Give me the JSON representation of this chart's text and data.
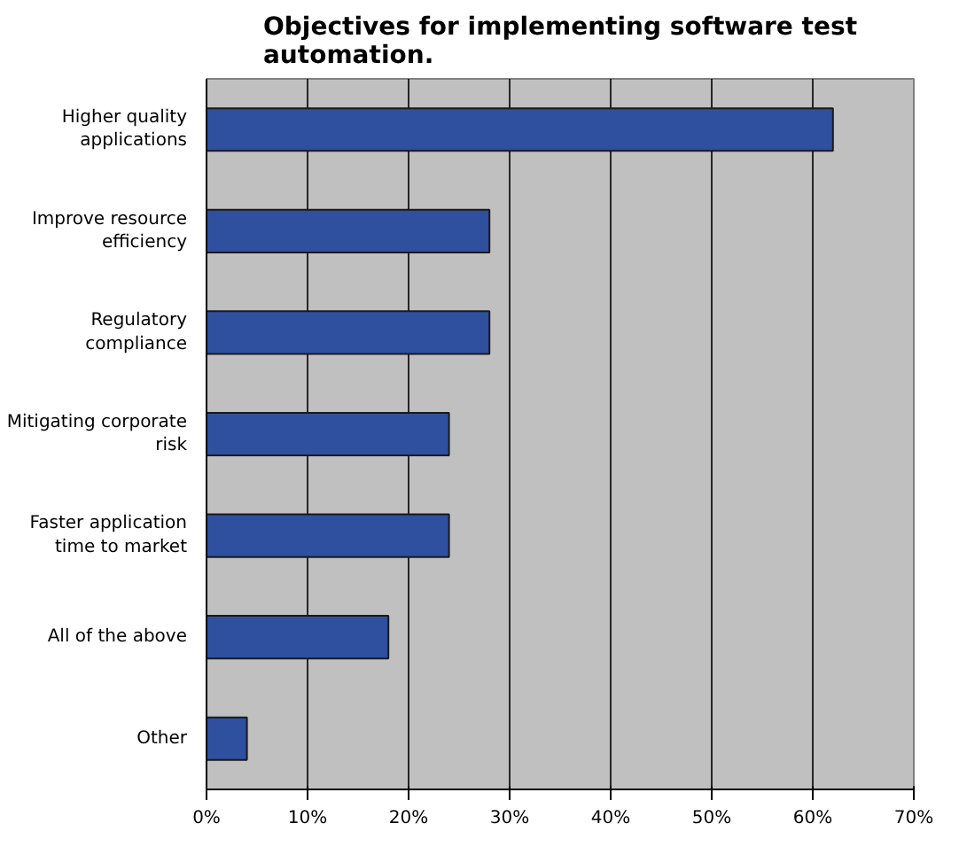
{
  "chart_data": {
    "type": "bar",
    "orientation": "horizontal",
    "title": "Objectives for implementing software test automation.",
    "categories": [
      "Higher quality applications",
      "Improve resource efficiency",
      "Regulatory compliance",
      "Mitigating corporate risk",
      "Faster application time to market",
      "All of the above",
      "Other"
    ],
    "values": [
      62,
      28,
      28,
      24,
      24,
      18,
      4
    ],
    "color": "#2f4f9f",
    "xlim": [
      0,
      70
    ],
    "xticks": [
      {
        "value": 0,
        "label": "0%"
      },
      {
        "value": 10,
        "label": "10%"
      },
      {
        "value": 20,
        "label": "20%"
      },
      {
        "value": 30,
        "label": "30%"
      },
      {
        "value": 40,
        "label": "40%"
      },
      {
        "value": 50,
        "label": "50%"
      },
      {
        "value": 60,
        "label": "60%"
      },
      {
        "value": 70,
        "label": "70%"
      }
    ],
    "grid": "x"
  }
}
